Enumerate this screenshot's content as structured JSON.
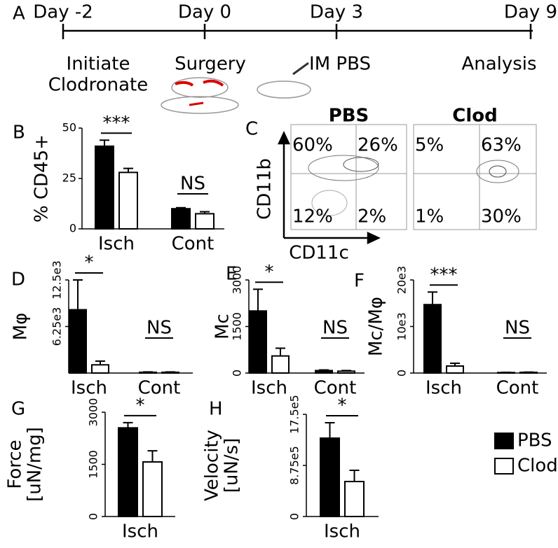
{
  "timeline": {
    "panel": "A",
    "days": [
      "Day -2",
      "Day 0",
      "Day 3",
      "Day 9"
    ],
    "events": [
      [
        "Initiate",
        "Clodronate"
      ],
      [
        "Surgery"
      ],
      [
        "IM PBS"
      ],
      [
        "Analysis"
      ]
    ]
  },
  "flow": {
    "panel": "C",
    "x_label": "CD11c",
    "y_label": "CD11b",
    "plots": [
      {
        "title": "PBS",
        "quadrants": [
          "60%",
          "26%",
          "12%",
          "2%"
        ]
      },
      {
        "title": "Clod",
        "quadrants": [
          "5%",
          "63%",
          "1%",
          "30%"
        ]
      }
    ]
  },
  "chart_data": [
    {
      "type": "bar",
      "panel": "B",
      "y_label": [
        "% CD45+"
      ],
      "categories": [
        "Isch",
        "Cont"
      ],
      "annotations": [
        "***",
        "NS"
      ],
      "ylim": [
        0,
        50
      ],
      "yticks": [
        0,
        25,
        50
      ],
      "series": [
        {
          "name": "PBS",
          "color": "#000000",
          "values": [
            41,
            10
          ],
          "errors": [
            3,
            0.5
          ]
        },
        {
          "name": "Clod",
          "color": "#ffffff",
          "values": [
            28,
            7.5
          ],
          "errors": [
            2,
            1
          ]
        }
      ]
    },
    {
      "type": "bar",
      "panel": "D",
      "y_label": [
        "Mφ"
      ],
      "categories": [
        "Isch",
        "Cont"
      ],
      "annotations": [
        "*",
        "NS"
      ],
      "ylim": [
        0,
        12500
      ],
      "yticks": [
        {
          "value": 6250,
          "label": "6.25e3"
        },
        {
          "value": 12500,
          "label": "12.5e3"
        }
      ],
      "series": [
        {
          "name": "PBS",
          "color": "#000000",
          "values": [
            8500,
            100
          ],
          "errors": [
            4000,
            50
          ]
        },
        {
          "name": "Clod",
          "color": "#ffffff",
          "values": [
            1100,
            100
          ],
          "errors": [
            500,
            50
          ]
        }
      ]
    },
    {
      "type": "bar",
      "panel": "E",
      "y_label": [
        "Mc"
      ],
      "categories": [
        "Isch",
        "Cont"
      ],
      "annotations": [
        "*",
        "NS"
      ],
      "ylim": [
        0,
        3000
      ],
      "yticks": [
        0,
        1500,
        3000
      ],
      "series": [
        {
          "name": "PBS",
          "color": "#000000",
          "values": [
            2000,
            80
          ],
          "errors": [
            700,
            20
          ]
        },
        {
          "name": "Clod",
          "color": "#ffffff",
          "values": [
            550,
            60
          ],
          "errors": [
            250,
            20
          ]
        }
      ]
    },
    {
      "type": "bar",
      "panel": "F",
      "y_label": [
        "Mc/Mφ"
      ],
      "categories": [
        "Isch",
        "Cont"
      ],
      "annotations": [
        "***",
        "NS"
      ],
      "ylim": [
        0,
        20000
      ],
      "yticks": [
        0,
        {
          "value": 10000,
          "label": "10e3"
        },
        {
          "value": 20000,
          "label": "20e3"
        }
      ],
      "series": [
        {
          "name": "PBS",
          "color": "#000000",
          "values": [
            14700,
            100
          ],
          "errors": [
            2700,
            50
          ]
        },
        {
          "name": "Clod",
          "color": "#ffffff",
          "values": [
            1500,
            150
          ],
          "errors": [
            600,
            50
          ]
        }
      ]
    },
    {
      "type": "bar",
      "panel": "G",
      "y_label": [
        "Force",
        "[uN/mg]"
      ],
      "categories": [
        "Isch"
      ],
      "annotations": [
        "*"
      ],
      "ylim": [
        0,
        3000
      ],
      "yticks": [
        0,
        1500,
        3000
      ],
      "series": [
        {
          "name": "PBS",
          "color": "#000000",
          "values": [
            2550
          ],
          "errors": [
            150
          ]
        },
        {
          "name": "Clod",
          "color": "#ffffff",
          "values": [
            1570
          ],
          "errors": [
            320
          ]
        }
      ]
    },
    {
      "type": "bar",
      "panel": "H",
      "y_label": [
        "Velocity",
        "[uN/s]"
      ],
      "categories": [
        "Isch"
      ],
      "annotations": [
        "*"
      ],
      "ylim": [
        0,
        1750000
      ],
      "yticks": [
        0,
        {
          "value": 875000,
          "label": "8.75e5"
        },
        {
          "value": 1750000,
          "label": "17.5e5"
        }
      ],
      "series": [
        {
          "name": "PBS",
          "color": "#000000",
          "values": [
            1342000
          ],
          "errors": [
            264000
          ]
        },
        {
          "name": "Clod",
          "color": "#ffffff",
          "values": [
            599000
          ],
          "errors": [
            192000
          ]
        }
      ]
    }
  ]
}
